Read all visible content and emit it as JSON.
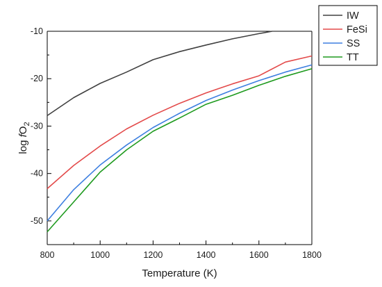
{
  "chart_data": {
    "type": "line",
    "xlabel": "Temperature (K)",
    "ylabel_parts": [
      "log ",
      "f",
      "O",
      "2"
    ],
    "xlim": [
      800,
      1800
    ],
    "ylim": [
      -55,
      -10
    ],
    "xticks": [
      800,
      1000,
      1200,
      1400,
      1600,
      1800
    ],
    "yticks": [
      -50,
      -40,
      -30,
      -20,
      -10
    ],
    "grid": false,
    "legend_position": "top-right, outside plot",
    "series": [
      {
        "name": "IW",
        "color": "#404040",
        "x": [
          800,
          900,
          1000,
          1100,
          1200,
          1300,
          1400,
          1500,
          1600,
          1650
        ],
        "y": [
          -27.8,
          -24.0,
          -21.0,
          -18.6,
          -16.0,
          -14.3,
          -12.9,
          -11.6,
          -10.5,
          -10.0
        ]
      },
      {
        "name": "FeSi",
        "color": "#e34a4a",
        "x": [
          800,
          900,
          1000,
          1100,
          1200,
          1300,
          1400,
          1500,
          1600,
          1700,
          1800
        ],
        "y": [
          -43.2,
          -38.3,
          -34.2,
          -30.6,
          -27.7,
          -25.2,
          -23.0,
          -21.1,
          -19.4,
          -16.5,
          -15.2
        ]
      },
      {
        "name": "SS",
        "color": "#3d7fe0",
        "x": [
          800,
          900,
          1000,
          1100,
          1200,
          1300,
          1400,
          1500,
          1600,
          1700,
          1800
        ],
        "y": [
          -50.0,
          -43.4,
          -38.2,
          -34.0,
          -30.3,
          -27.3,
          -24.6,
          -22.4,
          -20.4,
          -18.6,
          -17.1
        ]
      },
      {
        "name": "TT",
        "color": "#1e9a1e",
        "x": [
          800,
          900,
          1000,
          1100,
          1200,
          1300,
          1400,
          1500,
          1600,
          1700,
          1800
        ],
        "y": [
          -52.3,
          -46.0,
          -39.7,
          -35.0,
          -31.1,
          -28.3,
          -25.4,
          -23.5,
          -21.4,
          -19.5,
          -17.9
        ]
      }
    ]
  }
}
